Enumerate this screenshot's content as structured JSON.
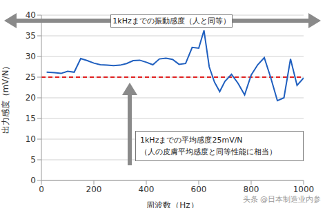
{
  "chart_data": {
    "type": "line",
    "x_label": "周波数（Hz）",
    "y_label": "出力感度（mV/N）",
    "x": [
      20,
      50,
      75,
      100,
      125,
      150,
      175,
      200,
      225,
      250,
      275,
      300,
      325,
      350,
      375,
      400,
      425,
      450,
      475,
      500,
      525,
      550,
      575,
      600,
      620,
      640,
      660,
      680,
      700,
      725,
      750,
      775,
      800,
      825,
      850,
      875,
      900,
      925,
      950,
      975,
      1000
    ],
    "values": [
      26.2,
      26.1,
      25.9,
      26.4,
      26.2,
      29.5,
      29,
      28.4,
      28,
      27.9,
      27.8,
      27.9,
      28.3,
      29,
      29.1,
      28.6,
      28,
      29.4,
      29.6,
      29.3,
      28.1,
      28.3,
      32.2,
      32,
      36.3,
      27.5,
      23.8,
      21.5,
      24,
      25.7,
      23.5,
      20.7,
      25.5,
      28,
      29.7,
      24.8,
      19.3,
      20,
      29.4,
      23,
      24.8
    ],
    "color": "#1f5fbf",
    "xlim": [
      0,
      1000
    ],
    "xticks": [
      0,
      200,
      400,
      600,
      800,
      1000
    ],
    "ylim": [
      0,
      40
    ],
    "yticks": [
      0,
      5,
      10,
      15,
      20,
      25,
      30,
      35,
      40
    ],
    "grid": true,
    "average_line": {
      "value": 25,
      "color": "#e02020",
      "line_style": "dashed"
    },
    "annotations": [
      "1kHzまでの振動感度（人と同等）",
      "1kHzまでの平均感度25mV/N",
      "（人の皮膚平均感度と同等性能に相当）"
    ],
    "watermark": "头条 @日本制造业内参"
  }
}
